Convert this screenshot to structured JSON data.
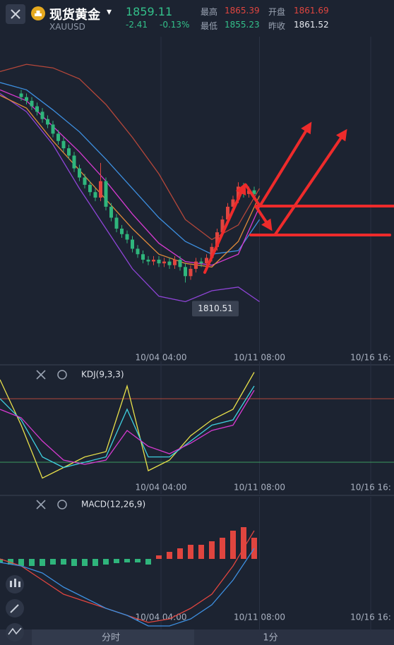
{
  "header": {
    "name": "现货黄金",
    "dropdown": "▾",
    "symbol": "XAUUSD",
    "price": "1859.11",
    "change": "-2.41",
    "change_pct": "-0.13%",
    "high_label": "最高",
    "high": "1865.39",
    "open_label": "开盘",
    "open": "1861.69",
    "low_label": "最低",
    "low": "1855.23",
    "prev_close_label": "昨收",
    "prev_close": "1861.52"
  },
  "chart_data": [
    {
      "type": "candlestick",
      "xlim": [
        0,
        74.4
      ],
      "ylim": [
        1772,
        1942
      ],
      "xticks": [
        {
          "value": 30.4,
          "label": "10/04 04:00"
        },
        {
          "value": 49,
          "label": "10/11 08:00"
        },
        {
          "value": 70,
          "label": "10/16 16:"
        }
      ],
      "up_color": "#e0453f",
      "down_color": "#2fb57c",
      "x": [
        4,
        5,
        6,
        7,
        8,
        9,
        10,
        11,
        12,
        13,
        14,
        15,
        16,
        17,
        18,
        19,
        20,
        21,
        22,
        23,
        24,
        25,
        26,
        27,
        28,
        29,
        30,
        31,
        32,
        33,
        34,
        35,
        36,
        37,
        38,
        39,
        40,
        41,
        42,
        43,
        44,
        45,
        46,
        47,
        48
      ],
      "open": [
        1914,
        1912,
        1910,
        1907,
        1904,
        1900,
        1897,
        1892,
        1888,
        1884,
        1880,
        1873,
        1868,
        1864,
        1860,
        1857,
        1866,
        1852,
        1846,
        1840,
        1837,
        1834,
        1829,
        1826,
        1823,
        1822,
        1823,
        1821,
        1822,
        1820,
        1823,
        1819,
        1814,
        1818,
        1822,
        1821,
        1824,
        1830,
        1838,
        1845,
        1852,
        1856,
        1863,
        1859,
        1861
      ],
      "high": [
        1916,
        1914,
        1912,
        1909,
        1906,
        1902,
        1899,
        1894,
        1890,
        1886,
        1882,
        1875,
        1870,
        1866,
        1862,
        1876,
        1868,
        1854,
        1848,
        1842,
        1839,
        1836,
        1831,
        1828,
        1825,
        1825,
        1825,
        1824,
        1824,
        1825,
        1825,
        1821,
        1820,
        1824,
        1824,
        1826,
        1832,
        1840,
        1847,
        1854,
        1858,
        1865.39,
        1865,
        1863,
        1863
      ],
      "low": [
        1910,
        1908,
        1905,
        1902,
        1898,
        1895,
        1890,
        1886,
        1882,
        1878,
        1871,
        1866,
        1862,
        1858,
        1855,
        1855,
        1850,
        1844,
        1838,
        1835,
        1832,
        1827,
        1824,
        1821,
        1820,
        1820,
        1819,
        1819,
        1818,
        1818,
        1817,
        1810.51,
        1812,
        1816,
        1819,
        1819,
        1822,
        1828,
        1836,
        1843,
        1850,
        1854,
        1857,
        1857,
        1857
      ],
      "close": [
        1912,
        1910,
        1907,
        1904,
        1900,
        1897,
        1892,
        1888,
        1884,
        1880,
        1873,
        1868,
        1864,
        1860,
        1857,
        1866,
        1852,
        1846,
        1840,
        1837,
        1834,
        1829,
        1826,
        1823,
        1822,
        1823,
        1821,
        1822,
        1820,
        1823,
        1819,
        1814,
        1818,
        1822,
        1821,
        1824,
        1830,
        1838,
        1845,
        1852,
        1856,
        1863,
        1859,
        1861,
        1859
      ],
      "overlays": [
        {
          "color": "#b5473a",
          "x": [
            0,
            5,
            10,
            15,
            20,
            25,
            30,
            35,
            40,
            45,
            49
          ],
          "values": [
            1926,
            1930,
            1928,
            1922,
            1908,
            1890,
            1870,
            1845,
            1834,
            1842,
            1862
          ]
        },
        {
          "color": "#3d8fe0",
          "x": [
            0,
            5,
            10,
            15,
            20,
            25,
            30,
            35,
            40,
            45,
            49
          ],
          "values": [
            1920,
            1916,
            1905,
            1893,
            1878,
            1862,
            1846,
            1833,
            1826,
            1828,
            1845
          ]
        },
        {
          "color": "#8e44d6",
          "x": [
            0,
            5,
            10,
            15,
            20,
            25,
            30,
            35,
            40,
            45,
            49
          ],
          "values": [
            1914,
            1904,
            1886,
            1862,
            1840,
            1818,
            1803,
            1800,
            1806,
            1808,
            1800
          ]
        },
        {
          "color": "#d63ad0",
          "x": [
            0,
            5,
            10,
            15,
            20,
            25,
            30,
            35,
            40,
            45,
            49
          ],
          "values": [
            1916,
            1910,
            1896,
            1882,
            1866,
            1848,
            1832,
            1822,
            1820,
            1826,
            1852
          ]
        },
        {
          "color": "#e08a3a",
          "x": [
            0,
            5,
            10,
            15,
            20,
            25,
            30,
            35,
            40,
            45,
            49
          ],
          "values": [
            1913,
            1906,
            1888,
            1872,
            1856,
            1840,
            1826,
            1821,
            1819,
            1833,
            1858
          ]
        }
      ],
      "annotation": {
        "value": 1810.51,
        "label": "1810.51"
      }
    },
    {
      "type": "line",
      "title": "KDJ(9,3,3)",
      "xlim": [
        0,
        74.4
      ],
      "ylim": [
        -10,
        110
      ],
      "xticks": [
        {
          "value": 30.4,
          "label": "10/04 04:00"
        },
        {
          "value": 49,
          "label": "10/11 08:00"
        },
        {
          "value": 70,
          "label": "10/16 16:"
        }
      ],
      "levels": [
        {
          "value": 80,
          "color": "#b5473a"
        },
        {
          "value": 20,
          "color": "#3c9a5f"
        }
      ],
      "x": [
        0,
        4,
        8,
        12,
        16,
        20,
        24,
        28,
        32,
        36,
        40,
        44,
        48
      ],
      "series": [
        {
          "color": "#e8e04a",
          "values": [
            98,
            55,
            5,
            15,
            25,
            30,
            92,
            12,
            22,
            45,
            60,
            70,
            105
          ]
        },
        {
          "color": "#3fd0e0",
          "values": [
            80,
            60,
            25,
            15,
            20,
            25,
            70,
            25,
            25,
            40,
            55,
            60,
            92
          ]
        },
        {
          "color": "#d63ad0",
          "values": [
            70,
            62,
            40,
            22,
            18,
            22,
            50,
            35,
            28,
            38,
            50,
            55,
            88
          ]
        }
      ]
    },
    {
      "type": "macd",
      "title": "MACD(12,26,9)",
      "xlim": [
        0,
        74.4
      ],
      "ylim": [
        -10,
        8
      ],
      "xticks": [
        {
          "value": 30.4,
          "label": "10/04 04:00"
        },
        {
          "value": 49,
          "label": "10/11 08:00"
        },
        {
          "value": 70,
          "label": "10/16 16:"
        }
      ],
      "up_color": "#e0453f",
      "down_color": "#2fb57c",
      "x": [
        0,
        4,
        8,
        12,
        16,
        20,
        24,
        28,
        32,
        36,
        40,
        44,
        48
      ],
      "series": [
        {
          "color": "#e0453f",
          "values": [
            0,
            -1,
            -3,
            -5,
            -6,
            -7,
            -8,
            -9,
            -8.5,
            -7,
            -5,
            -1,
            4
          ]
        },
        {
          "color": "#3d8fe0",
          "values": [
            -0.5,
            -1,
            -2,
            -4,
            -5.5,
            -7,
            -8,
            -9.5,
            -9.5,
            -8.5,
            -6.5,
            -3,
            1.5
          ]
        }
      ],
      "histogram": {
        "x": [
          0,
          2,
          4,
          6,
          8,
          10,
          12,
          14,
          16,
          18,
          20,
          22,
          24,
          26,
          28,
          30,
          32,
          34,
          36,
          38,
          40,
          42,
          44,
          46,
          48
        ],
        "values": [
          -0.5,
          -0.8,
          -1,
          -1,
          -1,
          -0.8,
          -0.8,
          -1,
          -1,
          -1,
          -0.8,
          -0.6,
          -0.5,
          -0.5,
          -0.8,
          0.5,
          1,
          1.5,
          2,
          2,
          2.5,
          3,
          4,
          4.5,
          3
        ]
      }
    }
  ],
  "footer": {
    "tabs": [
      "分时",
      "1分"
    ]
  }
}
